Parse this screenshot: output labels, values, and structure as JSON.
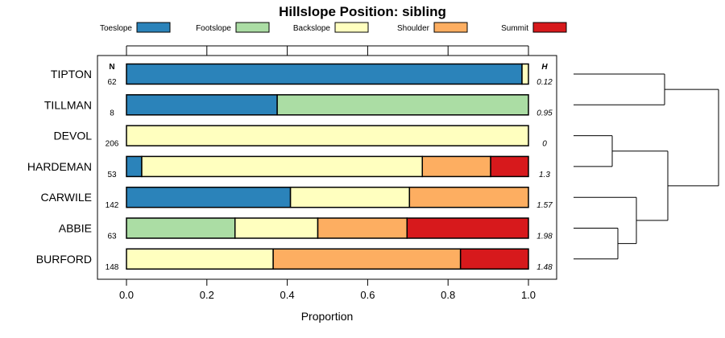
{
  "chart_data": {
    "type": "bar",
    "orientation": "horizontal",
    "stacked": true,
    "title": "Hillslope Position: sibling",
    "xlabel": "Proportion",
    "ylabel": "",
    "xlim": [
      0,
      1
    ],
    "x_ticks": [
      "0.0",
      "0.2",
      "0.4",
      "0.6",
      "0.8",
      "1.0"
    ],
    "n_header": "N",
    "h_header": "H",
    "legend": [
      {
        "name": "Toeslope",
        "color": "#2b83ba"
      },
      {
        "name": "Footslope",
        "color": "#abdda4"
      },
      {
        "name": "Backslope",
        "color": "#ffffbf"
      },
      {
        "name": "Shoulder",
        "color": "#fdae61"
      },
      {
        "name": "Summit",
        "color": "#d7191c"
      }
    ],
    "categories": [
      "TIPTON",
      "TILLMAN",
      "DEVOL",
      "HARDEMAN",
      "CARWILE",
      "ABBIE",
      "BURFORD"
    ],
    "n": [
      "62",
      "8",
      "206",
      "53",
      "142",
      "63",
      "148"
    ],
    "entropy": [
      "0.12",
      "0.95",
      "0",
      "1.3",
      "1.57",
      "1.98",
      "1.48"
    ],
    "series": [
      {
        "name": "Toeslope",
        "values": [
          0.984,
          0.375,
          0,
          0.038,
          0.408,
          0,
          0
        ]
      },
      {
        "name": "Footslope",
        "values": [
          0,
          0.625,
          0,
          0,
          0,
          0.27,
          0
        ]
      },
      {
        "name": "Backslope",
        "values": [
          0.016,
          0,
          1.0,
          0.698,
          0.296,
          0.206,
          0.365
        ]
      },
      {
        "name": "Shoulder",
        "values": [
          0,
          0,
          0,
          0.17,
          0.296,
          0.222,
          0.466
        ]
      },
      {
        "name": "Summit",
        "values": [
          0,
          0,
          0,
          0.094,
          0,
          0.302,
          0.169
        ]
      }
    ],
    "dendrogram": "hierarchical clustering of series"
  }
}
